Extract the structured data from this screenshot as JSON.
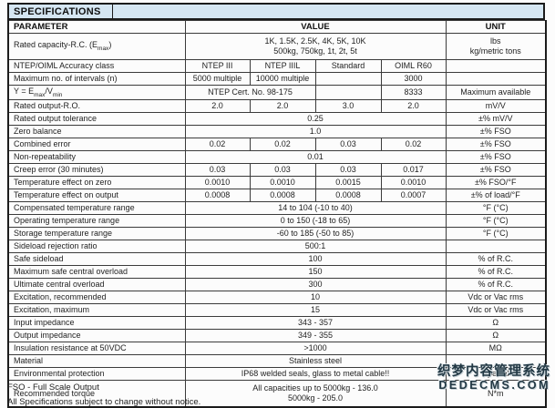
{
  "title": "SPECIFICATIONS",
  "header": {
    "parameter": "PARAMETER",
    "value": "VALUE",
    "unit": "UNIT"
  },
  "colors": {
    "title_bg": "#d5e6f2",
    "border": "#1b1b1b",
    "watermark": "#223844"
  },
  "table": {
    "rows": [
      {
        "cls": "tall",
        "param": [
          {
            "t": "Rated capacity-R.C. (E"
          },
          {
            "t": "max",
            "sub": true
          },
          {
            "t": ")"
          }
        ],
        "values": [
          {
            "text": "1K, 1.5K, 2.5K, 4K, 5K, 10K\n500kg, 750kg, 1t, 2t, 5t",
            "span": 4
          }
        ],
        "unit": "lbs\nkg/metric tons"
      },
      {
        "param": "NTEP/OIML Accuracy class",
        "values": [
          {
            "text": "NTEP III"
          },
          {
            "text": "NTEP IIIL"
          },
          {
            "text": "Standard"
          },
          {
            "text": "OIML R60"
          }
        ],
        "unit": ""
      },
      {
        "param": "Maximum no. of intervals (n)",
        "values": [
          {
            "text": "5000 multiple"
          },
          {
            "text": "10000 multiple"
          },
          {
            "text": ""
          },
          {
            "text": "3000"
          }
        ],
        "unit": ""
      },
      {
        "param": [
          {
            "t": "Y = E"
          },
          {
            "t": "max",
            "sub": true
          },
          {
            "t": "/V"
          },
          {
            "t": "min",
            "sub": true
          }
        ],
        "values": [
          {
            "text": "NTEP Cert. No. 98-175",
            "span": 2
          },
          {
            "text": ""
          },
          {
            "text": "8333"
          }
        ],
        "unit": "Maximum available"
      },
      {
        "param": "Rated output-R.O.",
        "values": [
          {
            "text": "2.0"
          },
          {
            "text": "2.0"
          },
          {
            "text": "3.0"
          },
          {
            "text": "2.0"
          }
        ],
        "unit": "mV/V"
      },
      {
        "param": "Rated output tolerance",
        "values": [
          {
            "text": "0.25",
            "span": 4
          }
        ],
        "unit": "±% mV/V"
      },
      {
        "param": "Zero balance",
        "values": [
          {
            "text": "1.0",
            "span": 4
          }
        ],
        "unit": "±% FSO"
      },
      {
        "param": "Combined error",
        "values": [
          {
            "text": "0.02"
          },
          {
            "text": "0.02"
          },
          {
            "text": "0.03"
          },
          {
            "text": "0.02"
          }
        ],
        "unit": "±% FSO"
      },
      {
        "param": "Non-repeatability",
        "values": [
          {
            "text": "0.01",
            "span": 4
          }
        ],
        "unit": "±% FSO"
      },
      {
        "param": "Creep error (30 minutes)",
        "values": [
          {
            "text": "0.03"
          },
          {
            "text": "0.03"
          },
          {
            "text": "0.03"
          },
          {
            "text": "0.017"
          }
        ],
        "unit": "±% FSO"
      },
      {
        "param": "Temperature effect on zero",
        "values": [
          {
            "text": "0.0010"
          },
          {
            "text": "0.0010"
          },
          {
            "text": "0.0015"
          },
          {
            "text": "0.0010"
          }
        ],
        "unit": "±% FSO/°F"
      },
      {
        "param": "Temperature effect on output",
        "values": [
          {
            "text": "0.0008"
          },
          {
            "text": "0.0008"
          },
          {
            "text": "0.0008"
          },
          {
            "text": "0.0007"
          }
        ],
        "unit": "±% of load/°F"
      },
      {
        "param": "Compensated temperature range",
        "values": [
          {
            "text": "14 to 104 (-10 to 40)",
            "span": 4
          }
        ],
        "unit": "°F (°C)"
      },
      {
        "param": "Operating temperature range",
        "values": [
          {
            "text": "0 to 150 (-18 to 65)",
            "span": 4
          }
        ],
        "unit": "°F (°C)"
      },
      {
        "param": "Storage temperature range",
        "values": [
          {
            "text": "-60 to 185 (-50 to 85)",
            "span": 4
          }
        ],
        "unit": "°F (°C)"
      },
      {
        "param": "Sideload rejection ratio",
        "values": [
          {
            "text": "500:1",
            "span": 4
          }
        ],
        "unit": ""
      },
      {
        "param": "Safe sideload",
        "values": [
          {
            "text": "100",
            "span": 4
          }
        ],
        "unit": "% of R.C."
      },
      {
        "param": "Maximum safe central overload",
        "values": [
          {
            "text": "150",
            "span": 4
          }
        ],
        "unit": "% of R.C."
      },
      {
        "param": "Ultimate central overload",
        "values": [
          {
            "text": "300",
            "span": 4
          }
        ],
        "unit": "% of R.C."
      },
      {
        "param": "Excitation, recommended",
        "values": [
          {
            "text": "10",
            "span": 4
          }
        ],
        "unit": "Vdc or Vac rms"
      },
      {
        "param": "Excitation, maximum",
        "values": [
          {
            "text": "15",
            "span": 4
          }
        ],
        "unit": "Vdc or Vac rms"
      },
      {
        "param": "Input impedance",
        "values": [
          {
            "text": "343 - 357",
            "span": 4
          }
        ],
        "unit": "Ω"
      },
      {
        "param": "Output impedance",
        "values": [
          {
            "text": "349 - 355",
            "span": 4
          }
        ],
        "unit": "Ω"
      },
      {
        "param": "Insulation resistance at 50VDC",
        "values": [
          {
            "text": ">1000",
            "span": 4
          }
        ],
        "unit": "MΩ"
      },
      {
        "param": "Material",
        "values": [
          {
            "text": "Stainless steel",
            "span": 4
          }
        ],
        "unit": ""
      },
      {
        "param": "Environmental protection",
        "values": [
          {
            "text": "IP68 welded seals, glass to metal cable!!",
            "span": 4
          }
        ],
        "unit": "Special"
      },
      {
        "cls": "tall",
        "param": "Recommended torque",
        "values": [
          {
            "text": "All capacities up to 5000kg - 136.0\n5000kg - 205.0",
            "span": 4
          }
        ],
        "unit": "N*m"
      }
    ]
  },
  "footer": {
    "line1": "FSO - Full Scale Output",
    "line2": "All Specifications subject to change without notice."
  },
  "watermark": {
    "line1": "织梦内容管理系统",
    "line2": "DEDECMS.COM"
  }
}
